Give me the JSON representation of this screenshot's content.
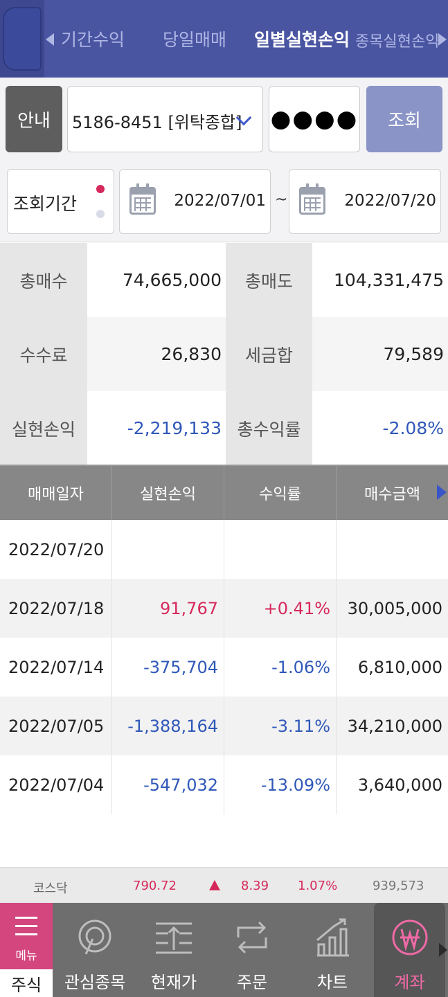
{
  "header": {
    "tabs": [
      {
        "label": "기간수익"
      },
      {
        "label": "당일매매"
      },
      {
        "label": "일별실현손익",
        "active": true
      },
      {
        "label": "종목실현손익"
      }
    ]
  },
  "account": {
    "guide_label": "안내",
    "account_value": "5186-8451 [위탁종합]",
    "password_mask": "●●●●",
    "search_label": "조회"
  },
  "period": {
    "label": "조회기간",
    "start": "2022/07/01",
    "separator": "~",
    "end": "2022/07/20"
  },
  "summary": {
    "total_buy_label": "총매수",
    "total_buy": "74,665,000",
    "total_sell_label": "총매도",
    "total_sell": "104,331,475",
    "fee_label": "수수료",
    "fee": "26,830",
    "tax_label": "세금합",
    "tax": "79,589",
    "realized_label": "실현손익",
    "realized": "-2,219,133",
    "return_label": "총수익률",
    "return": "-2.08%"
  },
  "table": {
    "columns": [
      "매매일자",
      "실현손익",
      "수익률",
      "매수금액"
    ],
    "rows": [
      {
        "date": "2022/07/20",
        "pnl": "",
        "rate": "",
        "buy": "",
        "sign": ""
      },
      {
        "date": "2022/07/18",
        "pnl": "91,767",
        "rate": "+0.41%",
        "buy": "30,005,000",
        "sign": "pos"
      },
      {
        "date": "2022/07/14",
        "pnl": "-375,704",
        "rate": "-1.06%",
        "buy": "6,810,000",
        "sign": "neg"
      },
      {
        "date": "2022/07/05",
        "pnl": "-1,388,164",
        "rate": "-3.11%",
        "buy": "34,210,000",
        "sign": "neg"
      },
      {
        "date": "2022/07/04",
        "pnl": "-547,032",
        "rate": "-13.09%",
        "buy": "3,640,000",
        "sign": "neg"
      }
    ]
  },
  "ticker": {
    "name": "코스닥",
    "index": "790.72",
    "change": "8.39",
    "change_pct": "1.07%",
    "volume": "939,573"
  },
  "bottom_nav": {
    "menu_label": "메뉴",
    "stock_label": "주식",
    "items": [
      {
        "label": "관심종목",
        "icon": "target-icon"
      },
      {
        "label": "현재가",
        "icon": "price-bars-icon"
      },
      {
        "label": "주문",
        "icon": "exchange-arrows-icon"
      },
      {
        "label": "차트",
        "icon": "chart-up-icon"
      },
      {
        "label": "계좌",
        "icon": "won-icon",
        "active": true
      }
    ]
  },
  "colors": {
    "header_bg": "#4a55a2",
    "positive": "#d6295b",
    "negative": "#2f58b8",
    "nav_bg": "#6e6e6e",
    "menu_accent": "#d3467e"
  }
}
